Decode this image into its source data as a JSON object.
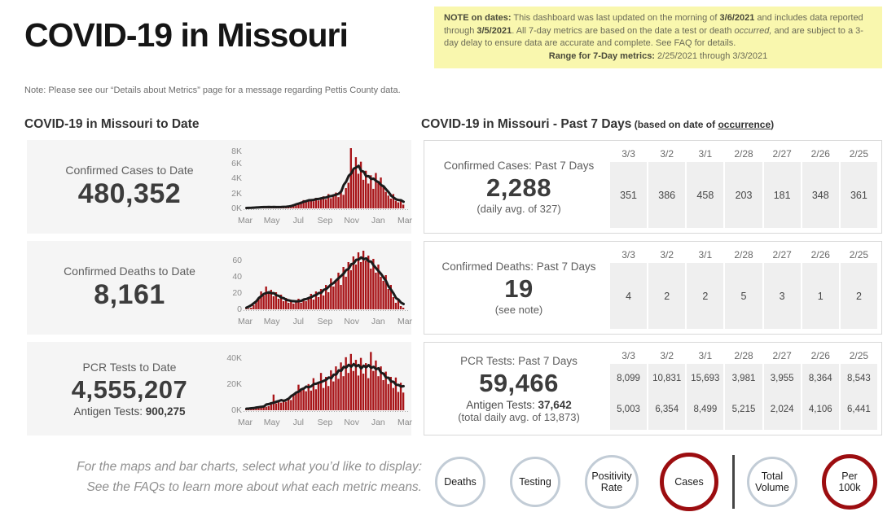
{
  "header": {
    "title": "COVID-19 in Missouri",
    "note_box": {
      "segments": [
        {
          "text": "NOTE on dates:",
          "b": true
        },
        {
          "text": " This dashboard was last updated on the morning of "
        },
        {
          "text": "3/6/2021",
          "b": true
        },
        {
          "text": " and includes data reported through "
        },
        {
          "text": "3/5/2021",
          "b": true
        },
        {
          "text": ". All 7-day metrics are based on the date a test or death "
        },
        {
          "text": "occurred,",
          "i": true
        },
        {
          "text": " and are subject to a 3-day delay to ensure data are accurate and complete. See FAQ for details."
        }
      ],
      "range_segments": [
        {
          "text": "Range for 7-Day metrics:",
          "b": true
        },
        {
          "text": " 2/25/2021 through 3/3/2021"
        }
      ]
    },
    "pettis_note": "Note: Please see our “Details about Metrics” page for a message regarding Pettis County data."
  },
  "sections": {
    "to_date": {
      "title": "COVID-19 in Missouri to Date"
    },
    "past7": {
      "title": "COVID-19 in Missouri - Past 7 Days",
      "subtitle_segments": [
        {
          "text": " (based on date of ",
          "b": true
        },
        {
          "text": "occurrence",
          "b": true,
          "u": true
        },
        {
          "text": ")",
          "b": true
        }
      ]
    }
  },
  "to_date_cards": [
    {
      "label": "Confirmed Cases to Date",
      "value": "480,352"
    },
    {
      "label": "Confirmed Deaths to Date",
      "value": "8,161"
    },
    {
      "label": "PCR Tests to Date",
      "value": "4,555,207",
      "sub_segments": [
        {
          "text": "Antigen Tests: "
        },
        {
          "text": "900,275",
          "b": true
        }
      ]
    }
  ],
  "past7_cards": [
    {
      "label": "Confirmed Cases: Past 7 Days",
      "value": "2,288",
      "sub": "(daily avg. of 327)",
      "dates": [
        "3/3",
        "3/2",
        "3/1",
        "2/28",
        "2/27",
        "2/26",
        "2/25"
      ],
      "rows": [
        [
          "351",
          "386",
          "458",
          "203",
          "181",
          "348",
          "361"
        ]
      ]
    },
    {
      "label": "Confirmed Deaths: Past 7 Days",
      "value": "19",
      "sub": "(see note)",
      "dates": [
        "3/3",
        "3/2",
        "3/1",
        "2/28",
        "2/27",
        "2/26",
        "2/25"
      ],
      "rows": [
        [
          "4",
          "2",
          "2",
          "5",
          "3",
          "1",
          "2"
        ]
      ]
    },
    {
      "label": "PCR Tests: Past 7 Days",
      "value": "59,466",
      "antigen_segments": [
        {
          "text": "Antigen Tests: "
        },
        {
          "text": "37,642",
          "b": true
        }
      ],
      "sub": "(total daily avg. of 13,873)",
      "dates": [
        "3/3",
        "3/2",
        "3/1",
        "2/28",
        "2/27",
        "2/26",
        "2/25"
      ],
      "rows": [
        [
          "8,099",
          "10,831",
          "15,693",
          "3,981",
          "3,955",
          "8,364",
          "8,543"
        ],
        [
          "5,003",
          "6,354",
          "8,499",
          "5,215",
          "2,024",
          "4,106",
          "6,441"
        ]
      ]
    }
  ],
  "footer": {
    "note_line1": "For the maps and bar charts, select what you’d like to display:",
    "note_line2": "See the FAQs to learn more about what each metric means.",
    "buttons": [
      {
        "label": "Deaths",
        "selected": false
      },
      {
        "label": "Testing",
        "selected": false
      },
      {
        "label": "Positivity Rate",
        "selected": false
      },
      {
        "label": "Cases",
        "selected": true
      },
      {
        "label": "Total Volume",
        "selected": false
      },
      {
        "label": "Per 100k",
        "selected": true
      }
    ]
  },
  "colors": {
    "bar_red": "#a81418",
    "line_black": "#1b1b1b",
    "selected_circle_red": "#9c0d10",
    "circle_gray": "#c2ccd6",
    "note_yellow": "#f9f7ae",
    "card_gray": "#f5f5f5",
    "cell_gray": "#efefef"
  },
  "chart_data": [
    {
      "type": "bar",
      "title": "Confirmed Cases to Date (daily new cases, Mar 2020 - Mar 2021)",
      "xticks": [
        "Mar",
        "May",
        "Jul",
        "Sep",
        "Nov",
        "Jan",
        "Mar"
      ],
      "yticks": [
        {
          "label": "8K",
          "value": 8000
        },
        {
          "label": "6K",
          "value": 6000
        },
        {
          "label": "4K",
          "value": 4000
        },
        {
          "label": "2K",
          "value": 2000
        },
        {
          "label": "0K",
          "value": 0
        }
      ],
      "ylim": [
        0,
        8000
      ],
      "bar_color": "#a81418",
      "line": {
        "type": "moving_average",
        "window": 7,
        "color": "#1b1b1b"
      },
      "bars": [
        5,
        15,
        40,
        90,
        160,
        140,
        210,
        150,
        230,
        160,
        190,
        150,
        220,
        130,
        180,
        160,
        200,
        260,
        310,
        280,
        390,
        620,
        900,
        1100,
        880,
        1050,
        1250,
        950,
        1400,
        1050,
        1300,
        1600,
        1200,
        1900,
        1350,
        1750,
        2100,
        1500,
        2400,
        1800,
        2700,
        3400,
        8000,
        5200,
        6800,
        4600,
        6200,
        3800,
        5000,
        3300,
        4400,
        2600,
        4700,
        3500,
        4100,
        2900,
        2200,
        1700,
        1300,
        1900,
        1000,
        800,
        1200,
        500
      ]
    },
    {
      "type": "bar",
      "title": "Confirmed Deaths to Date (daily deaths, Mar 2020 - Mar 2021)",
      "xticks": [
        "Mar",
        "May",
        "Jul",
        "Sep",
        "Nov",
        "Jan",
        "Mar"
      ],
      "yticks": [
        {
          "label": "60",
          "value": 60
        },
        {
          "label": "40",
          "value": 40
        },
        {
          "label": "20",
          "value": 20
        },
        {
          "label": "0",
          "value": 0
        }
      ],
      "ylim": [
        0,
        74
      ],
      "bar_color": "#a81418",
      "line": {
        "type": "moving_average",
        "window": 7,
        "color": "#1b1b1b"
      },
      "bars": [
        0,
        1,
        2,
        5,
        9,
        14,
        22,
        17,
        28,
        19,
        24,
        16,
        21,
        13,
        18,
        10,
        14,
        8,
        11,
        7,
        9,
        13,
        8,
        12,
        10,
        14,
        19,
        12,
        22,
        15,
        25,
        17,
        30,
        21,
        38,
        28,
        35,
        45,
        30,
        52,
        40,
        58,
        48,
        65,
        55,
        70,
        58,
        72,
        60,
        66,
        50,
        62,
        45,
        55,
        40,
        35,
        42,
        25,
        30,
        15,
        8,
        12,
        4,
        2
      ]
    },
    {
      "type": "bar",
      "title": "PCR Tests to Date (daily tests, Mar 2020 - Mar 2021)",
      "xticks": [
        "Mar",
        "May",
        "Jul",
        "Sep",
        "Nov",
        "Jan",
        "Mar"
      ],
      "yticks": [
        {
          "label": "40K",
          "value": 40000
        },
        {
          "label": "20K",
          "value": 20000
        },
        {
          "label": "0K",
          "value": 0
        }
      ],
      "ylim": [
        0,
        46000
      ],
      "bar_color": "#a81418",
      "line": {
        "type": "moving_average",
        "window": 7,
        "color": "#1b1b1b"
      },
      "bars": [
        300,
        800,
        1500,
        2200,
        1800,
        2800,
        2200,
        3500,
        2600,
        3200,
        4500,
        12000,
        5200,
        7000,
        5800,
        8200,
        6500,
        9500,
        7800,
        11000,
        14000,
        19500,
        15500,
        17500,
        14500,
        20000,
        15000,
        24500,
        16000,
        21000,
        28500,
        17000,
        25500,
        18500,
        30500,
        22000,
        33500,
        24000,
        36500,
        26000,
        40500,
        28500,
        43000,
        30000,
        38500,
        26500,
        40000,
        28000,
        36000,
        24500,
        44500,
        30000,
        38000,
        26000,
        33500,
        23000,
        29500,
        20000,
        25500,
        17000,
        25000,
        14000,
        21000,
        13500
      ]
    }
  ]
}
